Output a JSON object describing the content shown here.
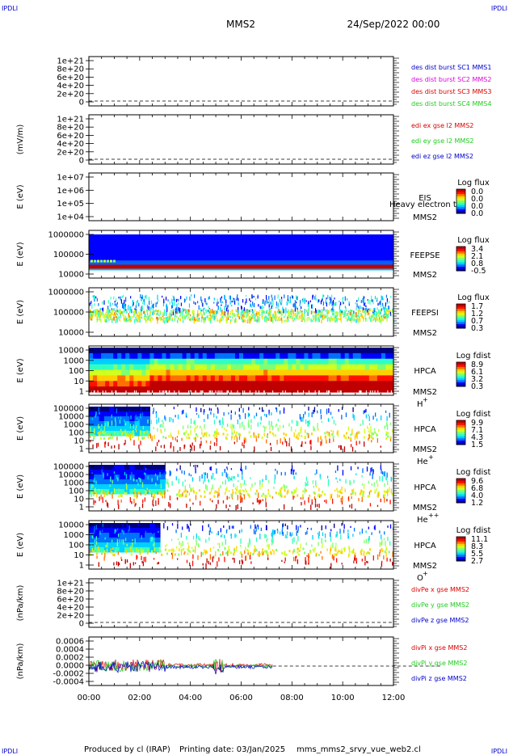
{
  "header": {
    "corner_tl": "IPDLI",
    "corner_tr": "IPDLI",
    "corner_bl": "IPDLI",
    "corner_br": "IPDLI",
    "mission": "MMS2",
    "datetime": "24/Sep/2022 00:00"
  },
  "footer": {
    "produced_by": "Produced by cl (IRAP)",
    "printing_date": "Printing date: 03/Jan/2025",
    "file": "mms_mms2_srvy_vue_web2.cl"
  },
  "colors": {
    "red": "#dd0000",
    "green": "#22cc22",
    "blue": "#0000cc",
    "magenta": "#dd00dd"
  },
  "chart_data": [
    {
      "type": "line",
      "id": "burst",
      "ylabel": "",
      "yticks": [
        "1e+21",
        "8e+20",
        "6e+20",
        "4e+20",
        "2e+20",
        "0"
      ],
      "legend": [
        {
          "name": "des dist burst SC1 MMS1",
          "color": "#0000cc"
        },
        {
          "name": "des dist burst SC2 MMS2",
          "color": "#dd00dd"
        },
        {
          "name": "des dist burst SC3 MMS3",
          "color": "#dd0000"
        },
        {
          "name": "des dist burst SC4 MMS4",
          "color": "#22cc22"
        }
      ]
    },
    {
      "type": "line",
      "id": "edi",
      "ylabel": "(mV/m)",
      "yticks": [
        "1e+21",
        "8e+20",
        "6e+20",
        "4e+20",
        "2e+20",
        "0"
      ],
      "legend": [
        {
          "name": "edi ex gse l2 MMS2",
          "color": "#dd0000"
        },
        {
          "name": "edi ey gse l2 MMS2",
          "color": "#22cc22"
        },
        {
          "name": "edi ez gse l2 MMS2",
          "color": "#0000cc"
        }
      ]
    },
    {
      "type": "heatmap",
      "id": "eis",
      "ylabel": "E (eV)",
      "yticks": [
        "1e+07",
        "1e+06",
        "1e+05",
        "1e+04"
      ],
      "instrument": [
        "EIS",
        "MMS2"
      ],
      "overlay": "Heavy electron to",
      "colorbar_title": "Log flux",
      "colorbar_ticks": [
        "0.0",
        "0.0",
        "0.0",
        "0.0"
      ]
    },
    {
      "type": "heatmap",
      "id": "feepse",
      "ylabel": "E (eV)",
      "yticks": [
        "1000000",
        "100000",
        "10000"
      ],
      "instrument": [
        "FEEPSE",
        "MMS2"
      ],
      "colorbar_title": "Log flux",
      "colorbar_ticks": [
        "3.4",
        "2.1",
        "0.8",
        "-0.5"
      ]
    },
    {
      "type": "heatmap",
      "id": "feepsi",
      "ylabel": "E (eV)",
      "yticks": [
        "1000000",
        "100000",
        "10000"
      ],
      "instrument": [
        "FEEPSI",
        "MMS2"
      ],
      "colorbar_title": "Log flux",
      "colorbar_ticks": [
        "1.7",
        "1.2",
        "0.7",
        "0.3"
      ]
    },
    {
      "type": "heatmap",
      "id": "hpca-h",
      "ylabel": "E (eV)",
      "yticks": [
        "10000",
        "1000",
        "100",
        "10",
        "1"
      ],
      "instrument": [
        "HPCA",
        "MMS2"
      ],
      "species": "H",
      "charge": "+",
      "colorbar_title": "Log fdist",
      "colorbar_ticks": [
        "8.9",
        "6.1",
        "3.2",
        "0.3"
      ]
    },
    {
      "type": "heatmap",
      "id": "hpca-he",
      "ylabel": "E (eV)",
      "yticks": [
        "100000",
        "10000",
        "1000",
        "100",
        "10",
        "1"
      ],
      "instrument": [
        "HPCA",
        "MMS2"
      ],
      "species": "He",
      "charge": "+",
      "colorbar_title": "Log fdist",
      "colorbar_ticks": [
        "9.9",
        "7.1",
        "4.3",
        "1.5"
      ]
    },
    {
      "type": "heatmap",
      "id": "hpca-hepp",
      "ylabel": "E (eV)",
      "yticks": [
        "100000",
        "10000",
        "1000",
        "100",
        "10",
        "1"
      ],
      "instrument": [
        "HPCA",
        "MMS2"
      ],
      "species": "He",
      "charge": "++",
      "colorbar_title": "Log fdist",
      "colorbar_ticks": [
        "9.6",
        "6.8",
        "4.0",
        "1.2"
      ]
    },
    {
      "type": "heatmap",
      "id": "hpca-o",
      "ylabel": "E (eV)",
      "yticks": [
        "10000",
        "1000",
        "100",
        "10",
        "1"
      ],
      "instrument": [
        "HPCA",
        "MMS2"
      ],
      "species": "O",
      "charge": "+",
      "colorbar_title": "Log fdist",
      "colorbar_ticks": [
        "11.1",
        "8.3",
        "5.5",
        "2.7"
      ]
    },
    {
      "type": "line",
      "id": "divpe",
      "ylabel": "(nPa/km)",
      "yticks": [
        "1e+21",
        "8e+20",
        "6e+20",
        "4e+20",
        "2e+20",
        "0"
      ],
      "legend": [
        {
          "name": "divPe x gse MMS2",
          "color": "#dd0000"
        },
        {
          "name": "divPe y gse MMS2",
          "color": "#22cc22"
        },
        {
          "name": "divPe z gse MMS2",
          "color": "#0000cc"
        }
      ]
    },
    {
      "type": "line",
      "id": "divpi",
      "ylabel": "(nPa/km)",
      "yticks": [
        "0.0006",
        "0.0004",
        "0.0002",
        "0.0000",
        "-0.0002",
        "-0.0004"
      ],
      "legend": [
        {
          "name": "divPi x gse MMS2",
          "color": "#dd0000"
        },
        {
          "name": "divPi y gse MMS2",
          "color": "#22cc22"
        },
        {
          "name": "divPi z gse MMS2",
          "color": "#0000cc"
        }
      ],
      "data_end_hour": 7.25
    }
  ],
  "xaxis": {
    "ticks": [
      "00:00",
      "02:00",
      "04:00",
      "06:00",
      "08:00",
      "10:00",
      "12:00"
    ],
    "range_hours": [
      0,
      12
    ]
  }
}
